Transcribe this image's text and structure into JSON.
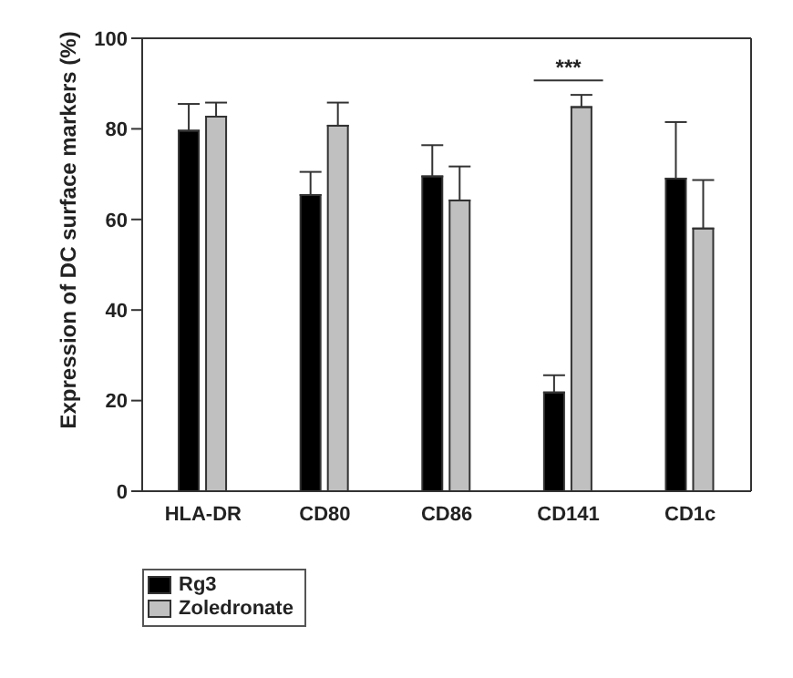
{
  "chart_data": {
    "type": "bar",
    "ylabel": "Expression of DC surface markers (%)",
    "categories": [
      "HLA-DR",
      "CD80",
      "CD86",
      "CD141",
      "CD1c"
    ],
    "series": [
      {
        "name": "Rg3",
        "color": "#000000",
        "values": [
          79.6,
          65.4,
          69.5,
          21.8,
          69.0
        ],
        "errors": [
          [
            79.6,
            85.5
          ],
          [
            65.4,
            70.5
          ],
          [
            69.5,
            76.4
          ],
          [
            21.8,
            25.6
          ],
          [
            69.0,
            81.5
          ]
        ]
      },
      {
        "name": "Zoledronate",
        "color": "#c0c0c0",
        "values": [
          82.7,
          80.7,
          64.2,
          84.8,
          58.0
        ],
        "errors": [
          [
            82.7,
            85.8
          ],
          [
            80.7,
            85.8
          ],
          [
            64.2,
            71.7
          ],
          [
            84.8,
            87.5
          ],
          [
            58.0,
            68.7
          ]
        ]
      }
    ],
    "ylim": [
      0,
      100
    ],
    "yticks": [
      0,
      20,
      40,
      60,
      80,
      100
    ],
    "grid": false,
    "legend": "bottom left",
    "annotations": [
      "***"
    ]
  }
}
